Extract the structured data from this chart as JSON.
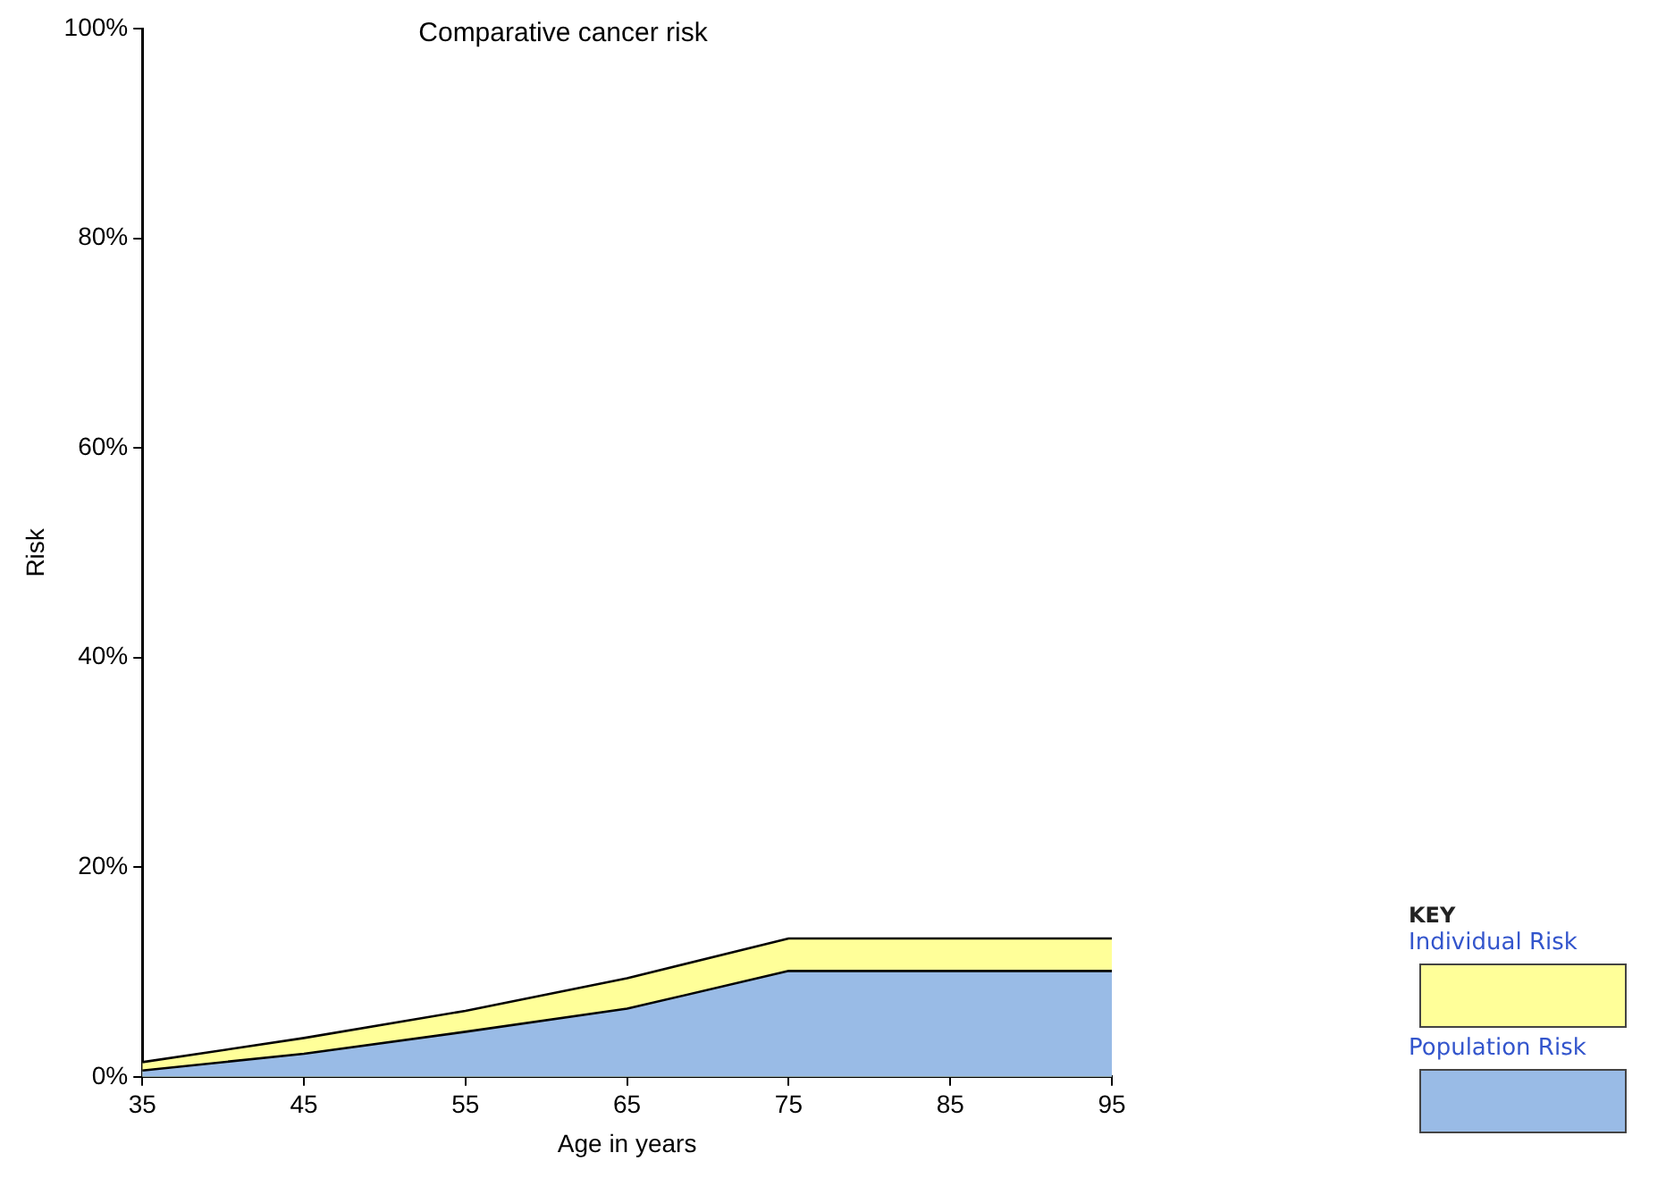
{
  "chart_data": {
    "type": "area",
    "title": "Comparative cancer risk",
    "xlabel": "Age in years",
    "ylabel": "Risk",
    "legend_title": "KEY",
    "x": [
      35,
      45,
      55,
      65,
      75,
      85,
      95
    ],
    "series": [
      {
        "name": "Individual Risk",
        "color": "#ffff99",
        "values": [
          1.4,
          3.7,
          6.3,
          9.4,
          13.2,
          13.2,
          13.2
        ]
      },
      {
        "name": "Population Risk",
        "color": "#99bbe6",
        "values": [
          0.6,
          2.2,
          4.3,
          6.5,
          10.1,
          10.1,
          10.1
        ]
      }
    ],
    "xlim": [
      35,
      95
    ],
    "xticks": [
      35,
      45,
      55,
      65,
      75,
      85,
      95
    ],
    "ylim": [
      0,
      100
    ],
    "yticks": [
      {
        "value": 0,
        "label": "0%"
      },
      {
        "value": 20,
        "label": "20%"
      },
      {
        "value": 40,
        "label": "40%"
      },
      {
        "value": 60,
        "label": "60%"
      },
      {
        "value": 80,
        "label": "80%"
      },
      {
        "value": 100,
        "label": "100%"
      }
    ],
    "grid": false,
    "legend": "bottom right",
    "marker": "none",
    "line_style": "solid"
  }
}
